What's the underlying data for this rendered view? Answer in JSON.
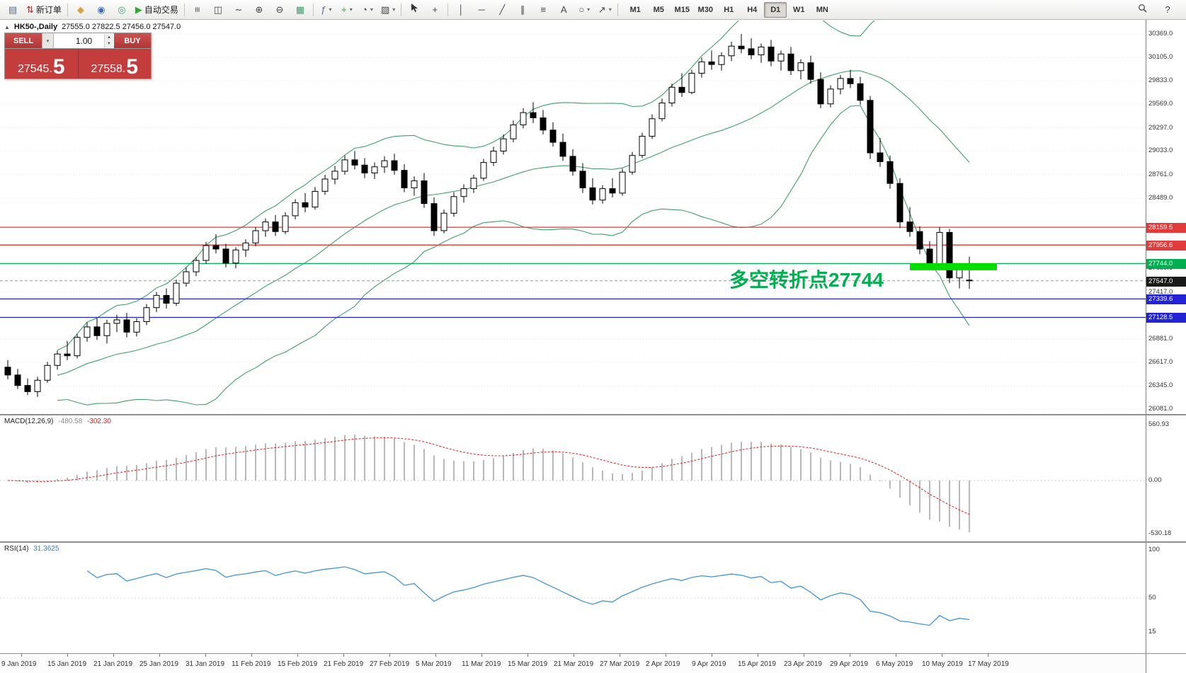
{
  "toolbar": {
    "items": [
      {
        "name": "chart-window-icon",
        "glyph": "▤",
        "color": "#4a6f9f"
      },
      {
        "name": "new-order-button",
        "glyph": "⇅",
        "color": "#b03030",
        "label": "新订单"
      },
      {
        "type": "sep"
      },
      {
        "name": "layers-icon",
        "glyph": "◆",
        "color": "#d9a23c"
      },
      {
        "name": "market-watch-icon",
        "glyph": "◉",
        "color": "#3d6fb4"
      },
      {
        "name": "navigator-icon",
        "glyph": "◎",
        "color": "#3da06a"
      },
      {
        "name": "auto-trading-button",
        "glyph": "▶",
        "color": "#2eaa2e",
        "label": "自动交易"
      },
      {
        "type": "sep"
      },
      {
        "name": "bar-chart-mode-icon",
        "glyph": "≡",
        "rotate": true
      },
      {
        "name": "candlestick-mode-icon",
        "glyph": "◫"
      },
      {
        "name": "line-chart-mode-icon",
        "glyph": "∼"
      },
      {
        "name": "zoom-in-icon",
        "glyph": "⊕"
      },
      {
        "name": "zoom-out-icon",
        "glyph": "⊖"
      },
      {
        "name": "tile-windows-icon",
        "glyph": "▦",
        "color": "#3da06a"
      },
      {
        "type": "sep"
      },
      {
        "name": "indicators-icon",
        "glyph": "ƒ",
        "color": "#3d6fb4",
        "dropdown": true
      },
      {
        "name": "add-indicator-icon",
        "glyph": "+",
        "color": "#2eaa2e",
        "dropdown": true
      },
      {
        "name": "periods-icon",
        "glyph": "◔",
        "dropdown": true
      },
      {
        "name": "templates-icon",
        "glyph": "▨",
        "dropdown": true
      },
      {
        "type": "sep"
      },
      {
        "name": "cursor-icon",
        "svg": "cursor"
      },
      {
        "name": "crosshair-icon",
        "glyph": "+"
      },
      {
        "type": "sep"
      },
      {
        "name": "vertical-line-icon",
        "glyph": "│"
      },
      {
        "name": "horizontal-line-icon",
        "glyph": "─"
      },
      {
        "name": "trendline-icon",
        "glyph": "╱"
      },
      {
        "name": "channel-icon",
        "glyph": "∥"
      },
      {
        "name": "fibonacci-icon",
        "glyph": "≡"
      },
      {
        "name": "text-icon",
        "glyph": "A"
      },
      {
        "name": "shapes-icon",
        "glyph": "○",
        "dropdown": true
      },
      {
        "name": "arrows-icon",
        "glyph": "↗",
        "dropdown": true
      },
      {
        "type": "sep"
      }
    ],
    "right_items": [
      {
        "name": "search-icon",
        "svg": "mag"
      },
      {
        "name": "help-icon",
        "glyph": "?"
      }
    ],
    "timeframes": [
      "M1",
      "M5",
      "M15",
      "M30",
      "H1",
      "H4",
      "D1",
      "W1",
      "MN"
    ],
    "active_timeframe": "D1"
  },
  "chart_header": {
    "collapse_icon": "▲",
    "symbol": "HK50-,Daily",
    "values": "27555.0 27822.5 27456.0 27547.0"
  },
  "trade_panel": {
    "sell_label": "SELL",
    "buy_label": "BUY",
    "volume": "1.00",
    "sell_price_main": "27545.",
    "sell_price_big": "5",
    "buy_price_main": "27558.",
    "buy_price_big": "5"
  },
  "annotation": {
    "text": "多空转折点27744",
    "color": "#00b050"
  },
  "price_axis": {
    "labels": [
      {
        "text": "30369.0",
        "price": 30369
      },
      {
        "text": "30105.0",
        "price": 30105
      },
      {
        "text": "29833.0",
        "price": 29833
      },
      {
        "text": "29569.0",
        "price": 29569
      },
      {
        "text": "29297.0",
        "price": 29297
      },
      {
        "text": "29033.0",
        "price": 29033
      },
      {
        "text": "28761.0",
        "price": 28761
      },
      {
        "text": "28489.0",
        "price": 28489
      },
      {
        "text": "27689.0",
        "price": 27689
      },
      {
        "text": "27417.0",
        "price": 27417
      },
      {
        "text": "26881.0",
        "price": 26881
      },
      {
        "text": "26617.0",
        "price": 26617
      },
      {
        "text": "26345.0",
        "price": 26345
      },
      {
        "text": "26081.0",
        "price": 26081
      }
    ],
    "badges": [
      {
        "text": "28159.5",
        "price": 28159.5,
        "bg": "#e23b3b",
        "fg": "#ffffff"
      },
      {
        "text": "27956.6",
        "price": 27956.6,
        "bg": "#e23b3b",
        "fg": "#ffffff"
      },
      {
        "text": "27744.0",
        "price": 27744,
        "bg": "#00b050",
        "fg": "#ffffff"
      },
      {
        "text": "27547.0",
        "price": 27547,
        "bg": "#1a1a1a",
        "fg": "#ffffff"
      },
      {
        "text": "27339.6",
        "price": 27339.6,
        "bg": "#2323d6",
        "fg": "#ffffff"
      },
      {
        "text": "27128.5",
        "price": 27128.5,
        "bg": "#2323d6",
        "fg": "#ffffff"
      }
    ]
  },
  "lines": {
    "horizontal": [
      {
        "price": 28159.5,
        "color": "#f03030"
      },
      {
        "price": 27956.6,
        "color": "#f03030"
      },
      {
        "price": 27744,
        "color": "#00b050"
      },
      {
        "price": 27339.6,
        "color": "#2323d6"
      },
      {
        "price": 27128.5,
        "color": "#2323d6"
      }
    ],
    "last_close": 27547,
    "highlight": {
      "price": 27708,
      "from_index": 91.5,
      "to_index": 100.3,
      "color": "#00dd00"
    }
  },
  "macd_panel": {
    "name": "MACD(12,26,9)",
    "value_main": "-480.58",
    "value_signal": "-302.30",
    "axis": [
      {
        "text": "560.93",
        "value": 560.93
      },
      {
        "text": "0.00",
        "value": 0
      },
      {
        "text": "-530.18",
        "value": -530.18
      }
    ]
  },
  "rsi_panel": {
    "name": "RSI(14)",
    "value": "31.3625",
    "axis": [
      {
        "text": "100",
        "value": 100
      },
      {
        "text": "50",
        "value": 50
      },
      {
        "text": "15",
        "value": 15
      }
    ]
  },
  "chart_data": {
    "type": "candlestick",
    "symbol": "HK50",
    "timeframe": "Daily",
    "price_range_visible": [
      26081,
      30369
    ],
    "x_labels": [
      "9 Jan 2019",
      "15 Jan 2019",
      "21 Jan 2019",
      "25 Jan 2019",
      "31 Jan 2019",
      "11 Feb 2019",
      "15 Feb 2019",
      "21 Feb 2019",
      "27 Feb 2019",
      "5 Mar 2019",
      "11 Mar 2019",
      "15 Mar 2019",
      "21 Mar 2019",
      "27 Mar 2019",
      "2 Apr 2019",
      "9 Apr 2019",
      "15 Apr 2019",
      "23 Apr 2019",
      "29 Apr 2019",
      "6 May 2019",
      "10 May 2019",
      "17 May 2019"
    ],
    "indicators": {
      "bollinger_period": 20,
      "bollinger_deviation": 2,
      "macd": [
        12,
        26,
        9
      ],
      "rsi_period": 14
    },
    "colors": {
      "up_candle": "#ffffff",
      "down_candle": "#000000",
      "bands": "#3da06a",
      "macd_histogram": "#b8b8b8",
      "macd_signal": "#e03131",
      "rsi_line": "#3f96d4"
    },
    "ohlc": [
      [
        26560,
        26640,
        26420,
        26470
      ],
      [
        26470,
        26540,
        26310,
        26350
      ],
      [
        26350,
        26430,
        26240,
        26280
      ],
      [
        26280,
        26450,
        26220,
        26410
      ],
      [
        26410,
        26620,
        26380,
        26580
      ],
      [
        26580,
        26750,
        26530,
        26710
      ],
      [
        26710,
        26860,
        26640,
        26690
      ],
      [
        26690,
        26940,
        26660,
        26900
      ],
      [
        26900,
        27070,
        26850,
        27020
      ],
      [
        27020,
        27120,
        26870,
        26920
      ],
      [
        26920,
        27100,
        26830,
        27060
      ],
      [
        27060,
        27160,
        26960,
        27100
      ],
      [
        27100,
        27180,
        26900,
        26960
      ],
      [
        26960,
        27120,
        26910,
        27080
      ],
      [
        27080,
        27280,
        27040,
        27240
      ],
      [
        27240,
        27420,
        27190,
        27380
      ],
      [
        27380,
        27460,
        27230,
        27290
      ],
      [
        27290,
        27560,
        27260,
        27520
      ],
      [
        27520,
        27700,
        27480,
        27650
      ],
      [
        27650,
        27820,
        27600,
        27780
      ],
      [
        27780,
        27990,
        27740,
        27950
      ],
      [
        27950,
        28080,
        27860,
        27910
      ],
      [
        27910,
        27970,
        27700,
        27750
      ],
      [
        27750,
        27930,
        27690,
        27900
      ],
      [
        27900,
        28020,
        27820,
        27980
      ],
      [
        27980,
        28160,
        27940,
        28120
      ],
      [
        28120,
        28260,
        28050,
        28220
      ],
      [
        28220,
        28300,
        28060,
        28110
      ],
      [
        28110,
        28330,
        28080,
        28290
      ],
      [
        28290,
        28480,
        28250,
        28440
      ],
      [
        28440,
        28550,
        28330,
        28390
      ],
      [
        28390,
        28620,
        28360,
        28570
      ],
      [
        28570,
        28760,
        28530,
        28710
      ],
      [
        28710,
        28860,
        28650,
        28800
      ],
      [
        28800,
        28980,
        28760,
        28930
      ],
      [
        28930,
        29030,
        28820,
        28870
      ],
      [
        28870,
        28950,
        28720,
        28780
      ],
      [
        28780,
        28900,
        28710,
        28850
      ],
      [
        28850,
        28970,
        28780,
        28920
      ],
      [
        28920,
        29000,
        28760,
        28810
      ],
      [
        28810,
        28880,
        28560,
        28610
      ],
      [
        28610,
        28740,
        28520,
        28690
      ],
      [
        28690,
        28780,
        28380,
        28430
      ],
      [
        28430,
        28500,
        28060,
        28120
      ],
      [
        28120,
        28360,
        28090,
        28320
      ],
      [
        28320,
        28560,
        28280,
        28510
      ],
      [
        28510,
        28650,
        28440,
        28600
      ],
      [
        28600,
        28760,
        28550,
        28720
      ],
      [
        28720,
        28940,
        28690,
        28900
      ],
      [
        28900,
        29080,
        28860,
        29030
      ],
      [
        29030,
        29220,
        28990,
        29170
      ],
      [
        29170,
        29380,
        29130,
        29330
      ],
      [
        29330,
        29520,
        29290,
        29470
      ],
      [
        29470,
        29590,
        29350,
        29410
      ],
      [
        29410,
        29500,
        29220,
        29270
      ],
      [
        29270,
        29360,
        29080,
        29130
      ],
      [
        29130,
        29230,
        28920,
        28970
      ],
      [
        28970,
        29050,
        28750,
        28800
      ],
      [
        28800,
        28890,
        28550,
        28610
      ],
      [
        28610,
        28720,
        28420,
        28470
      ],
      [
        28470,
        28640,
        28430,
        28600
      ],
      [
        28600,
        28720,
        28500,
        28550
      ],
      [
        28550,
        28830,
        28520,
        28790
      ],
      [
        28790,
        29020,
        28760,
        28980
      ],
      [
        28980,
        29240,
        28950,
        29200
      ],
      [
        29200,
        29450,
        29170,
        29400
      ],
      [
        29400,
        29630,
        29370,
        29580
      ],
      [
        29580,
        29800,
        29540,
        29760
      ],
      [
        29760,
        29920,
        29650,
        29700
      ],
      [
        29700,
        29960,
        29680,
        29920
      ],
      [
        29920,
        30100,
        29870,
        30050
      ],
      [
        30050,
        30180,
        29960,
        30020
      ],
      [
        30020,
        30160,
        29950,
        30120
      ],
      [
        30120,
        30280,
        30060,
        30230
      ],
      [
        30230,
        30369,
        30150,
        30200
      ],
      [
        30200,
        30320,
        30080,
        30130
      ],
      [
        30130,
        30260,
        30040,
        30220
      ],
      [
        30220,
        30300,
        30000,
        30060
      ],
      [
        30060,
        30180,
        29950,
        30140
      ],
      [
        30140,
        30220,
        29900,
        29950
      ],
      [
        29950,
        30080,
        29850,
        30040
      ],
      [
        30040,
        30120,
        29800,
        29850
      ],
      [
        29850,
        29930,
        29520,
        29570
      ],
      [
        29570,
        29780,
        29530,
        29740
      ],
      [
        29740,
        29900,
        29680,
        29860
      ],
      [
        29860,
        29960,
        29750,
        29800
      ],
      [
        29800,
        29880,
        29560,
        29610
      ],
      [
        29610,
        29660,
        28940,
        29010
      ],
      [
        29010,
        29180,
        28850,
        28910
      ],
      [
        28910,
        28980,
        28600,
        28660
      ],
      [
        28660,
        28720,
        28150,
        28220
      ],
      [
        28220,
        28390,
        28050,
        28110
      ],
      [
        28110,
        28170,
        27850,
        27910
      ],
      [
        27910,
        28000,
        27680,
        27740
      ],
      [
        27740,
        28160,
        27700,
        28100
      ],
      [
        28100,
        28140,
        27520,
        27580
      ],
      [
        27580,
        27720,
        27460,
        27680
      ],
      [
        27555,
        27822.5,
        27456,
        27547
      ]
    ]
  }
}
